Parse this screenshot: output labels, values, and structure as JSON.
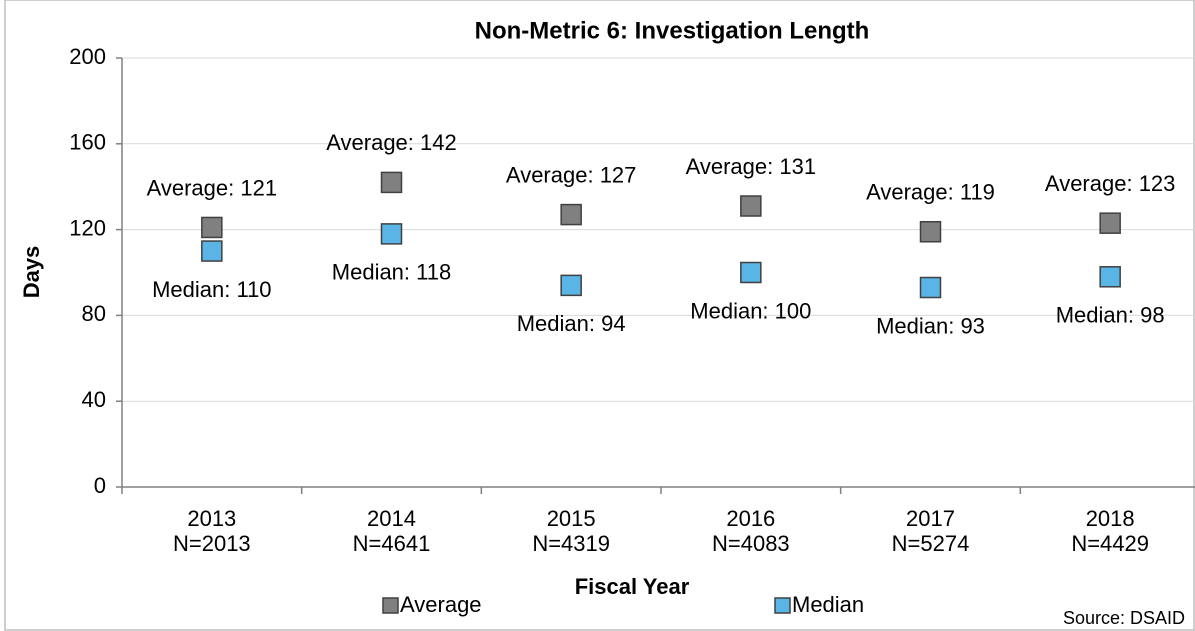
{
  "chart_data": {
    "type": "scatter",
    "title": "Non-Metric 6: Investigation Length",
    "x_label": "Fiscal Year",
    "y_label": "Days",
    "source": "Source: DSAID",
    "categories": [
      "2013",
      "2014",
      "2015",
      "2016",
      "2017",
      "2018"
    ],
    "category_sublabels": [
      "N=2013",
      "N=4641",
      "N=4319",
      "N=4083",
      "N=5274",
      "N=4429"
    ],
    "series": [
      {
        "name": "Average",
        "color": "#808080",
        "values": [
          121,
          142,
          127,
          131,
          119,
          123
        ],
        "value_labels": [
          "Average: 121",
          "Average: 142",
          "Average: 127",
          "Average: 131",
          "Average: 119",
          "Average: 123"
        ]
      },
      {
        "name": "Median",
        "color": "#5ab4e6",
        "values": [
          110,
          118,
          94,
          100,
          93,
          98
        ],
        "value_labels": [
          "Median: 110",
          "Median: 118",
          "Median: 94",
          "Median: 100",
          "Median: 93",
          "Median: 98"
        ]
      }
    ],
    "ylim": [
      0,
      200
    ],
    "yticks": [
      0,
      40,
      80,
      120,
      160,
      200
    ],
    "grid": true
  }
}
